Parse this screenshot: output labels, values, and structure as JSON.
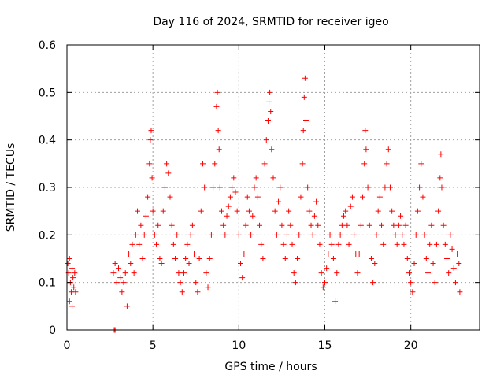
{
  "chart_data": {
    "type": "scatter",
    "title": "Day 116 of 2024, SRMTID for receiver igeo",
    "xlabel": "GPS time / hours",
    "ylabel": "SRMTID / TECUs",
    "xlim": [
      0,
      24
    ],
    "ylim": [
      0,
      0.6
    ],
    "xticks": [
      0,
      5,
      10,
      15,
      20
    ],
    "xtick_labels": [
      "0",
      "5",
      "10",
      "15",
      "20"
    ],
    "yticks": [
      0,
      0.1,
      0.2,
      0.3,
      0.4,
      0.5,
      0.6
    ],
    "ytick_labels": [
      "0",
      "0.1",
      "0.2",
      "0.3",
      "0.4",
      "0.5",
      "0.6"
    ],
    "grid": true,
    "marker": "+",
    "color": "#ff0000",
    "series": [
      {
        "name": "SRMTID",
        "points": [
          [
            0.0,
            0.16
          ],
          [
            0.05,
            0.14
          ],
          [
            0.1,
            0.12
          ],
          [
            0.15,
            0.15
          ],
          [
            0.2,
            0.1
          ],
          [
            0.25,
            0.08
          ],
          [
            0.3,
            0.13
          ],
          [
            0.35,
            0.11
          ],
          [
            0.4,
            0.09
          ],
          [
            0.45,
            0.12
          ],
          [
            0.5,
            0.08
          ],
          [
            0.15,
            0.06
          ],
          [
            0.3,
            0.05
          ],
          [
            2.75,
            0.0
          ],
          [
            2.8,
            0.0
          ],
          [
            2.7,
            0.12
          ],
          [
            2.8,
            0.14
          ],
          [
            2.9,
            0.1
          ],
          [
            3.0,
            0.13
          ],
          [
            3.1,
            0.11
          ],
          [
            3.2,
            0.08
          ],
          [
            3.3,
            0.1
          ],
          [
            3.4,
            0.12
          ],
          [
            3.5,
            0.05
          ],
          [
            3.6,
            0.16
          ],
          [
            3.7,
            0.14
          ],
          [
            3.8,
            0.18
          ],
          [
            3.9,
            0.12
          ],
          [
            4.0,
            0.2
          ],
          [
            4.1,
            0.25
          ],
          [
            4.2,
            0.18
          ],
          [
            4.3,
            0.22
          ],
          [
            4.4,
            0.15
          ],
          [
            4.5,
            0.2
          ],
          [
            4.6,
            0.24
          ],
          [
            4.7,
            0.28
          ],
          [
            4.8,
            0.35
          ],
          [
            4.85,
            0.4
          ],
          [
            4.9,
            0.42
          ],
          [
            4.95,
            0.32
          ],
          [
            5.0,
            0.25
          ],
          [
            5.1,
            0.2
          ],
          [
            5.2,
            0.18
          ],
          [
            5.3,
            0.22
          ],
          [
            5.4,
            0.15
          ],
          [
            5.5,
            0.14
          ],
          [
            5.6,
            0.25
          ],
          [
            5.7,
            0.3
          ],
          [
            5.8,
            0.35
          ],
          [
            5.9,
            0.33
          ],
          [
            6.0,
            0.28
          ],
          [
            6.1,
            0.22
          ],
          [
            6.2,
            0.18
          ],
          [
            6.3,
            0.15
          ],
          [
            6.4,
            0.2
          ],
          [
            6.5,
            0.12
          ],
          [
            6.6,
            0.1
          ],
          [
            6.7,
            0.08
          ],
          [
            6.8,
            0.12
          ],
          [
            6.9,
            0.15
          ],
          [
            7.0,
            0.18
          ],
          [
            7.1,
            0.14
          ],
          [
            7.2,
            0.2
          ],
          [
            7.3,
            0.22
          ],
          [
            7.4,
            0.16
          ],
          [
            7.5,
            0.1
          ],
          [
            7.6,
            0.08
          ],
          [
            7.7,
            0.15
          ],
          [
            7.8,
            0.25
          ],
          [
            7.9,
            0.35
          ],
          [
            8.0,
            0.3
          ],
          [
            8.1,
            0.12
          ],
          [
            8.2,
            0.09
          ],
          [
            8.3,
            0.15
          ],
          [
            8.4,
            0.2
          ],
          [
            8.5,
            0.3
          ],
          [
            8.6,
            0.35
          ],
          [
            8.7,
            0.47
          ],
          [
            8.75,
            0.5
          ],
          [
            8.8,
            0.42
          ],
          [
            8.85,
            0.38
          ],
          [
            8.9,
            0.3
          ],
          [
            9.0,
            0.25
          ],
          [
            9.1,
            0.22
          ],
          [
            9.2,
            0.2
          ],
          [
            9.3,
            0.24
          ],
          [
            9.4,
            0.26
          ],
          [
            9.5,
            0.28
          ],
          [
            9.6,
            0.3
          ],
          [
            9.7,
            0.32
          ],
          [
            9.8,
            0.29
          ],
          [
            9.9,
            0.25
          ],
          [
            10.0,
            0.2
          ],
          [
            10.1,
            0.14
          ],
          [
            10.2,
            0.11
          ],
          [
            10.3,
            0.16
          ],
          [
            10.4,
            0.22
          ],
          [
            10.5,
            0.28
          ],
          [
            10.6,
            0.25
          ],
          [
            10.7,
            0.2
          ],
          [
            10.8,
            0.24
          ],
          [
            10.9,
            0.3
          ],
          [
            11.0,
            0.32
          ],
          [
            11.1,
            0.28
          ],
          [
            11.2,
            0.22
          ],
          [
            11.3,
            0.18
          ],
          [
            11.4,
            0.15
          ],
          [
            11.5,
            0.35
          ],
          [
            11.6,
            0.4
          ],
          [
            11.7,
            0.44
          ],
          [
            11.75,
            0.48
          ],
          [
            11.8,
            0.5
          ],
          [
            11.85,
            0.46
          ],
          [
            11.9,
            0.38
          ],
          [
            12.0,
            0.32
          ],
          [
            12.1,
            0.25
          ],
          [
            12.2,
            0.2
          ],
          [
            12.3,
            0.27
          ],
          [
            12.4,
            0.3
          ],
          [
            12.5,
            0.22
          ],
          [
            12.6,
            0.18
          ],
          [
            12.7,
            0.15
          ],
          [
            12.8,
            0.2
          ],
          [
            12.9,
            0.25
          ],
          [
            13.0,
            0.22
          ],
          [
            13.1,
            0.18
          ],
          [
            13.2,
            0.12
          ],
          [
            13.3,
            0.1
          ],
          [
            13.4,
            0.15
          ],
          [
            13.5,
            0.2
          ],
          [
            13.6,
            0.28
          ],
          [
            13.7,
            0.35
          ],
          [
            13.75,
            0.42
          ],
          [
            13.8,
            0.49
          ],
          [
            13.85,
            0.53
          ],
          [
            13.9,
            0.44
          ],
          [
            14.0,
            0.3
          ],
          [
            14.1,
            0.25
          ],
          [
            14.2,
            0.22
          ],
          [
            14.3,
            0.2
          ],
          [
            14.4,
            0.24
          ],
          [
            14.5,
            0.27
          ],
          [
            14.6,
            0.22
          ],
          [
            14.7,
            0.18
          ],
          [
            14.8,
            0.12
          ],
          [
            14.9,
            0.09
          ],
          [
            15.0,
            0.1
          ],
          [
            15.1,
            0.13
          ],
          [
            15.2,
            0.16
          ],
          [
            15.3,
            0.2
          ],
          [
            15.4,
            0.18
          ],
          [
            15.5,
            0.15
          ],
          [
            15.6,
            0.06
          ],
          [
            15.7,
            0.12
          ],
          [
            15.8,
            0.18
          ],
          [
            15.9,
            0.2
          ],
          [
            16.0,
            0.22
          ],
          [
            16.1,
            0.24
          ],
          [
            16.2,
            0.25
          ],
          [
            16.3,
            0.22
          ],
          [
            16.4,
            0.18
          ],
          [
            16.5,
            0.26
          ],
          [
            16.6,
            0.28
          ],
          [
            16.7,
            0.2
          ],
          [
            16.8,
            0.16
          ],
          [
            16.9,
            0.12
          ],
          [
            17.0,
            0.16
          ],
          [
            17.1,
            0.22
          ],
          [
            17.2,
            0.28
          ],
          [
            17.3,
            0.35
          ],
          [
            17.35,
            0.42
          ],
          [
            17.4,
            0.38
          ],
          [
            17.5,
            0.3
          ],
          [
            17.6,
            0.22
          ],
          [
            17.7,
            0.15
          ],
          [
            17.8,
            0.1
          ],
          [
            17.9,
            0.14
          ],
          [
            18.0,
            0.2
          ],
          [
            18.1,
            0.25
          ],
          [
            18.2,
            0.28
          ],
          [
            18.3,
            0.22
          ],
          [
            18.4,
            0.18
          ],
          [
            18.5,
            0.3
          ],
          [
            18.6,
            0.35
          ],
          [
            18.7,
            0.38
          ],
          [
            18.8,
            0.3
          ],
          [
            18.9,
            0.25
          ],
          [
            19.0,
            0.22
          ],
          [
            19.1,
            0.2
          ],
          [
            19.2,
            0.18
          ],
          [
            19.3,
            0.22
          ],
          [
            19.4,
            0.24
          ],
          [
            19.5,
            0.2
          ],
          [
            19.6,
            0.18
          ],
          [
            19.7,
            0.22
          ],
          [
            19.8,
            0.15
          ],
          [
            19.9,
            0.12
          ],
          [
            20.0,
            0.1
          ],
          [
            20.1,
            0.08
          ],
          [
            20.2,
            0.14
          ],
          [
            20.3,
            0.2
          ],
          [
            20.4,
            0.25
          ],
          [
            20.5,
            0.3
          ],
          [
            20.6,
            0.35
          ],
          [
            20.7,
            0.28
          ],
          [
            20.8,
            0.2
          ],
          [
            20.9,
            0.15
          ],
          [
            21.0,
            0.12
          ],
          [
            21.1,
            0.18
          ],
          [
            21.2,
            0.22
          ],
          [
            21.3,
            0.14
          ],
          [
            21.4,
            0.1
          ],
          [
            21.5,
            0.18
          ],
          [
            21.6,
            0.25
          ],
          [
            21.7,
            0.32
          ],
          [
            21.75,
            0.37
          ],
          [
            21.8,
            0.3
          ],
          [
            21.9,
            0.22
          ],
          [
            22.0,
            0.18
          ],
          [
            22.1,
            0.15
          ],
          [
            22.2,
            0.12
          ],
          [
            22.3,
            0.2
          ],
          [
            22.4,
            0.17
          ],
          [
            22.5,
            0.13
          ],
          [
            22.6,
            0.1
          ],
          [
            22.7,
            0.16
          ],
          [
            22.8,
            0.14
          ],
          [
            22.85,
            0.08
          ]
        ]
      }
    ]
  }
}
